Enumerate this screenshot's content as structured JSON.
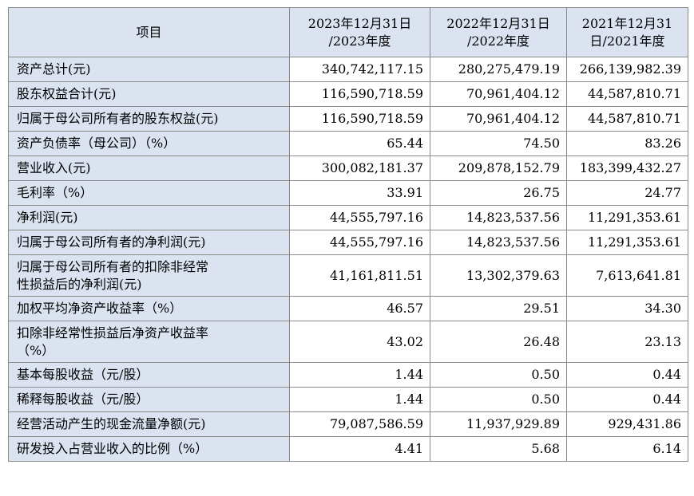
{
  "table": {
    "headers": [
      "项目",
      "2023年12月31日\n/2023年度",
      "2022年12月31日\n/2022年度",
      "2021年12月31\n日/2021年度"
    ],
    "rows": [
      {
        "label": "资产总计(元)",
        "v": [
          "340,742,117.15",
          "280,275,479.19",
          "266,139,982.39"
        ]
      },
      {
        "label": "股东权益合计(元)",
        "v": [
          "116,590,718.59",
          "70,961,404.12",
          "44,587,810.71"
        ]
      },
      {
        "label": "归属于母公司所有者的股东权益(元)",
        "v": [
          "116,590,718.59",
          "70,961,404.12",
          "44,587,810.71"
        ]
      },
      {
        "label": "资产负债率（母公司）（%）",
        "v": [
          "65.44",
          "74.50",
          "83.26"
        ]
      },
      {
        "label": "营业收入(元)",
        "v": [
          "300,082,181.37",
          "209,878,152.79",
          "183,399,432.27"
        ]
      },
      {
        "label": "毛利率（%）",
        "v": [
          "33.91",
          "26.75",
          "24.77"
        ]
      },
      {
        "label": "净利润(元)",
        "v": [
          "44,555,797.16",
          "14,823,537.56",
          "11,291,353.61"
        ]
      },
      {
        "label": "归属于母公司所有者的净利润(元)",
        "v": [
          "44,555,797.16",
          "14,823,537.56",
          "11,291,353.61"
        ]
      },
      {
        "label": "归属于母公司所有者的扣除非经常\n性损益后的净利润(元)",
        "v": [
          "41,161,811.51",
          "13,302,379.63",
          "7,613,641.81"
        ]
      },
      {
        "label": "加权平均净资产收益率（%）",
        "v": [
          "46.57",
          "29.51",
          "34.30"
        ]
      },
      {
        "label": "扣除非经常性损益后净资产收益率\n（%）",
        "v": [
          "43.02",
          "26.48",
          "23.13"
        ]
      },
      {
        "label": "基本每股收益（元/股）",
        "v": [
          "1.44",
          "0.50",
          "0.44"
        ]
      },
      {
        "label": "稀释每股收益（元/股）",
        "v": [
          "1.44",
          "0.50",
          "0.44"
        ]
      },
      {
        "label": "经营活动产生的现金流量净额(元)",
        "v": [
          "79,087,586.59",
          "11,937,929.89",
          "929,431.86"
        ]
      },
      {
        "label": "研发投入占营业收入的比例（%）",
        "v": [
          "4.41",
          "5.68",
          "6.14"
        ]
      }
    ]
  }
}
